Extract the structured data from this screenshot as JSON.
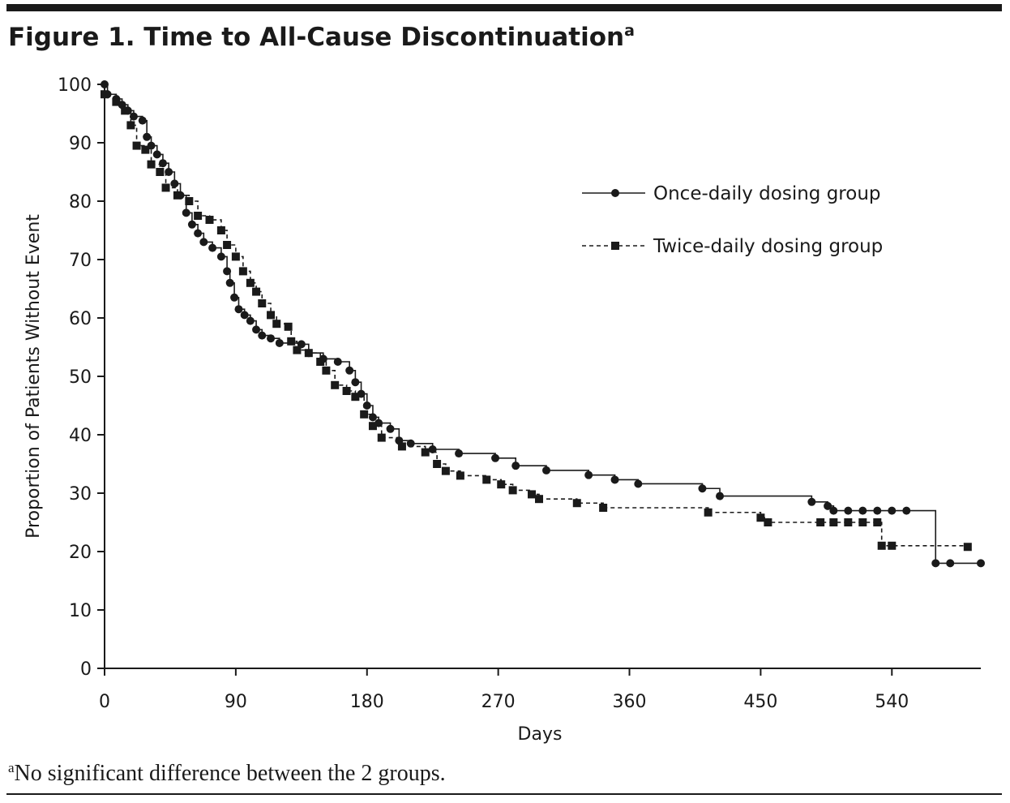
{
  "chart_data": {
    "type": "step",
    "title": "Figure 1. Time to All-Cause Discontinuation",
    "title_superscript": "a",
    "xlabel": "Days",
    "ylabel": "Proportion of Patients Without Event",
    "footnote_superscript": "a",
    "footnote": "No significant difference between the 2 groups.",
    "xlim": [
      0,
      601
    ],
    "ylim": [
      0,
      100
    ],
    "xticks": [
      0,
      90,
      180,
      270,
      360,
      450,
      540
    ],
    "yticks": [
      0,
      10,
      20,
      30,
      40,
      50,
      60,
      70,
      80,
      90,
      100
    ],
    "legend": "upper right",
    "series": [
      {
        "name": "Once-daily dosing group",
        "color": "#1a1a1a",
        "linestyle": "solid",
        "marker": "circle",
        "x": [
          0,
          2,
          8,
          12,
          16,
          20,
          26,
          29,
          32,
          36,
          40,
          44,
          48,
          52,
          56,
          60,
          64,
          68,
          74,
          80,
          84,
          86,
          89,
          92,
          96,
          100,
          104,
          108,
          114,
          120,
          135,
          140,
          150,
          160,
          168,
          172,
          176,
          180,
          184,
          188,
          196,
          202,
          210,
          225,
          243,
          268,
          282,
          303,
          332,
          350,
          366,
          410,
          422,
          485,
          496,
          500,
          510,
          520,
          530,
          540,
          550,
          570,
          580,
          601
        ],
        "values": [
          100,
          98.3,
          97.5,
          96.5,
          95.5,
          94.5,
          93.8,
          91,
          89.5,
          88,
          86.5,
          85,
          83,
          81,
          78,
          76,
          74.5,
          73,
          72,
          70.5,
          68,
          66,
          63.5,
          61.5,
          60.5,
          59.5,
          58,
          57,
          56.5,
          55.7,
          55.5,
          54,
          53,
          52.5,
          51,
          49,
          47,
          45,
          43,
          42,
          41,
          39,
          38.5,
          37.5,
          36.8,
          36,
          34.7,
          33.9,
          33.1,
          32.3,
          31.6,
          30.8,
          29.5,
          28.5,
          27.8,
          27,
          27,
          27,
          27,
          27,
          27,
          18,
          18,
          18
        ]
      },
      {
        "name": "Twice-daily dosing group",
        "color": "#1a1a1a",
        "linestyle": "dashed",
        "marker": "square",
        "x": [
          0,
          8,
          14,
          18,
          22,
          28,
          32,
          38,
          42,
          50,
          58,
          64,
          72,
          80,
          84,
          90,
          95,
          100,
          104,
          108,
          114,
          118,
          126,
          128,
          132,
          140,
          148,
          152,
          158,
          166,
          172,
          178,
          184,
          190,
          204,
          220,
          228,
          234,
          244,
          262,
          272,
          280,
          293,
          298,
          324,
          342,
          414,
          450,
          455,
          491,
          500,
          510,
          520,
          530,
          533,
          540,
          592
        ],
        "values": [
          98.3,
          97,
          95.5,
          93,
          89.5,
          88.8,
          86.3,
          85,
          82.3,
          81,
          80,
          77.5,
          76.8,
          75,
          72.5,
          70.5,
          68,
          66,
          64.5,
          62.5,
          60.5,
          59,
          58.5,
          56,
          54.5,
          54,
          52.5,
          51,
          48.5,
          47.5,
          46.5,
          43.5,
          41.5,
          39.5,
          38,
          37,
          35,
          33.8,
          33,
          32.3,
          31.5,
          30.5,
          29.8,
          29,
          28.3,
          27.5,
          26.7,
          25.8,
          25,
          25,
          25,
          25,
          25,
          25,
          21,
          21,
          20.8
        ]
      }
    ]
  }
}
